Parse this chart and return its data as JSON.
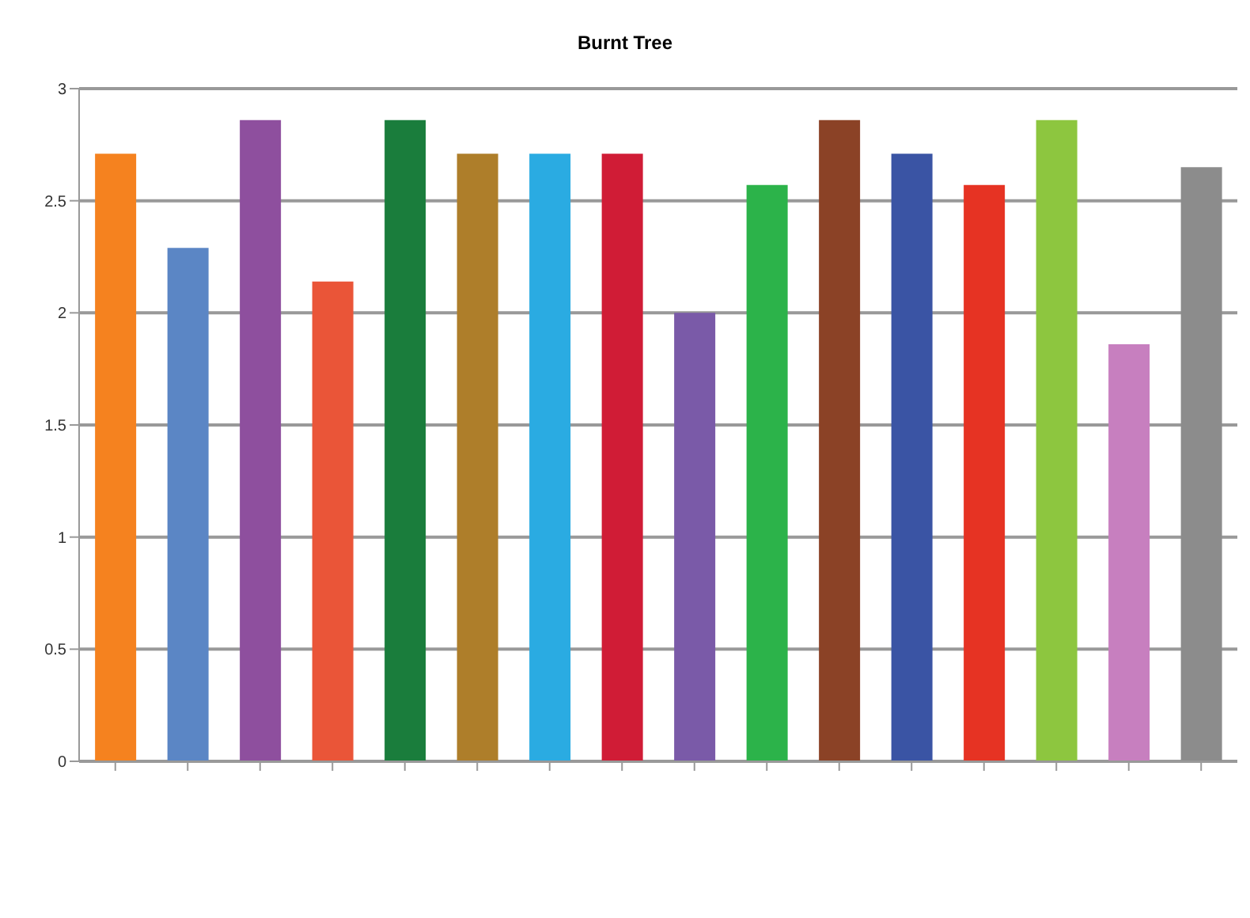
{
  "chart_data": {
    "type": "bar",
    "title": "Burnt Tree",
    "categories": [
      null,
      null,
      null,
      null,
      null,
      null,
      null,
      null,
      null,
      null,
      null,
      null,
      null,
      null,
      null,
      null
    ],
    "values": [
      2.71,
      2.29,
      2.86,
      2.14,
      2.86,
      2.71,
      2.71,
      2.71,
      2.0,
      2.57,
      2.86,
      2.71,
      2.57,
      2.86,
      1.86,
      2.65
    ],
    "colors": [
      "#f5821f",
      "#5b86c5",
      "#8e4f9e",
      "#ea5538",
      "#1a7d3c",
      "#ae7e2a",
      "#2aabe2",
      "#d01c36",
      "#7a5aa8",
      "#2cb34a",
      "#8b4226",
      "#3a54a4",
      "#e63323",
      "#8dc63f",
      "#c77fbf",
      "#8c8c8c"
    ],
    "ylim": [
      0,
      3
    ],
    "yticks": [
      0,
      0.5,
      1,
      1.5,
      2,
      2.5,
      3
    ],
    "grid": "y"
  }
}
